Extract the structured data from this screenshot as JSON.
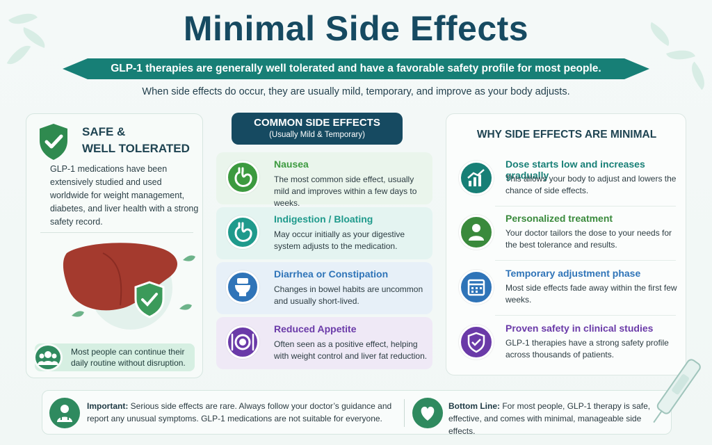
{
  "title": "Minimal Side Effects",
  "ribbon": "GLP-1 therapies are generally well tolerated and have a favorable safety profile for most people.",
  "subtitle": "When side effects do occur, they are usually mild, temporary, and improve as your body adjusts.",
  "left": {
    "title_line1": "SAFE &",
    "title_line2": "WELL TOLERATED",
    "body": "GLP-1 medications have been extensively studied and used worldwide for weight management, diabetes, and liver health with a strong safety record.",
    "callout": "Most people can continue their daily routine without disruption.",
    "icons": {
      "shield": "shield-check-icon",
      "liver": "liver-illustration",
      "people": "people-group-icon"
    }
  },
  "middle": {
    "header_title": "COMMON SIDE EFFECTS",
    "header_sub": "(Usually Mild & Temporary)",
    "cards": [
      {
        "title": "Nausea",
        "desc": "The most common side effect, usually mild and improves within a few days to weeks.",
        "icon": "stomach-icon",
        "color": "#3c9a3f",
        "bg": "#eaf5ec"
      },
      {
        "title": "Indigestion / Bloating",
        "desc": "May occur initially as your digestive system adjusts to the medication.",
        "icon": "stomach-icon",
        "color": "#1f9a8c",
        "bg": "#e4f4f1"
      },
      {
        "title": "Diarrhea or Constipation",
        "desc": "Changes in bowel habits are uncommon and usually short-lived.",
        "icon": "toilet-icon",
        "color": "#2f74b8",
        "bg": "#e7f0f8"
      },
      {
        "title": "Reduced Appetite",
        "desc": "Often seen as a positive effect, helping with weight control and liver fat reduction.",
        "icon": "plate-cutlery-icon",
        "color": "#6a3aa8",
        "bg": "#efe9f6"
      }
    ]
  },
  "right": {
    "title": "WHY SIDE EFFECTS ARE MINIMAL",
    "items": [
      {
        "title": "Dose starts low and increases gradually",
        "desc": "This allows your body to adjust and lowers the chance of side effects.",
        "icon": "chart-up-icon",
        "color": "#177f76"
      },
      {
        "title": "Personalized treatment",
        "desc": "Your doctor tailors the dose to your needs for the best tolerance and results.",
        "icon": "doctor-icon",
        "color": "#3a8a3c"
      },
      {
        "title": "Temporary adjustment phase",
        "desc": "Most side effects fade away within the first few weeks.",
        "icon": "calendar-icon",
        "color": "#2f74b8"
      },
      {
        "title": "Proven safety in clinical studies",
        "desc": "GLP-1 therapies have a strong safety profile across thousands of patients.",
        "icon": "shield-check-icon",
        "color": "#6a3aa8"
      }
    ]
  },
  "bottom": {
    "important_label": "Important:",
    "important_text": " Serious side effects are rare. Always follow your doctor’s guidance and report any unusual symptoms. GLP-1 medications are not suitable for everyone.",
    "bottomline_label": "Bottom Line:",
    "bottomline_text": " For most people, GLP-1 therapy is safe, effective, and comes with minimal, manageable side effects.",
    "icons": {
      "left": "doctor-icon",
      "right": "heart-icon",
      "corner": "syringe-pen-icon"
    }
  },
  "colors": {
    "navy": "#164a61",
    "teal": "#177f76",
    "green": "#3c9a3f",
    "blue": "#2f74b8",
    "purple": "#6a3aa8"
  }
}
